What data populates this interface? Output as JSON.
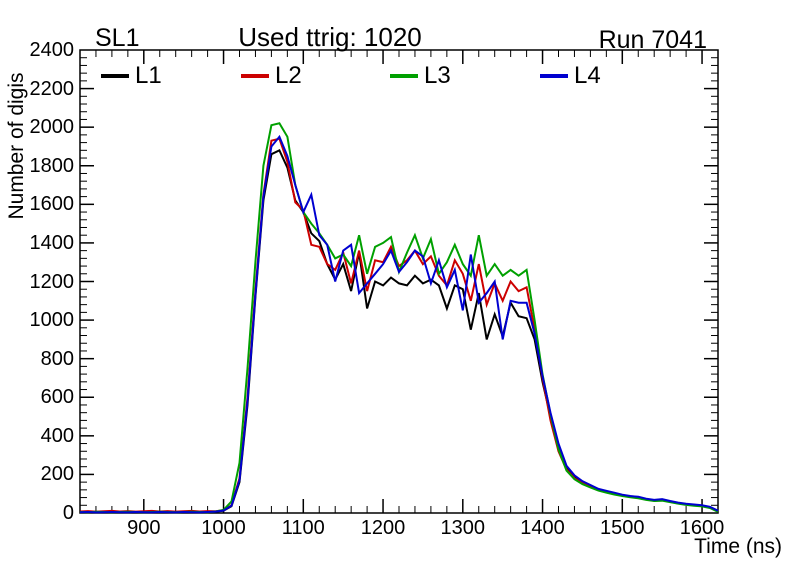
{
  "page": {
    "background": "#ffffff"
  },
  "header": {
    "left_label": "SL1",
    "center_label": "Used ttrig: 1020",
    "right_label": "Run 7041"
  },
  "legend": {
    "position": "top-inside",
    "entries": [
      {
        "label": "L1",
        "color": "#000000"
      },
      {
        "label": "L2",
        "color": "#cc0000"
      },
      {
        "label": "L3",
        "color": "#00a000"
      },
      {
        "label": "L4",
        "color": "#0000d0"
      }
    ]
  },
  "chart_data": {
    "type": "line",
    "title": "Used ttrig: 1020",
    "xlabel": "Time (ns)",
    "ylabel": "Number of digis",
    "xlim": [
      820,
      1620
    ],
    "ylim": [
      0,
      2400
    ],
    "grid": false,
    "legend_position": "top-inside",
    "x_major_ticks": [
      900,
      1000,
      1100,
      1200,
      1300,
      1400,
      1500,
      1600
    ],
    "x_minor_step": 20,
    "y_major_ticks": [
      0,
      200,
      400,
      600,
      800,
      1000,
      1200,
      1400,
      1600,
      1800,
      2000,
      2200,
      2400
    ],
    "y_minor_step": 40,
    "x": [
      820,
      830,
      840,
      850,
      860,
      870,
      880,
      890,
      900,
      910,
      920,
      930,
      940,
      950,
      960,
      970,
      980,
      990,
      1000,
      1010,
      1020,
      1030,
      1040,
      1050,
      1060,
      1070,
      1080,
      1090,
      1100,
      1110,
      1120,
      1130,
      1140,
      1150,
      1160,
      1170,
      1180,
      1190,
      1200,
      1210,
      1220,
      1230,
      1240,
      1250,
      1260,
      1270,
      1280,
      1290,
      1300,
      1310,
      1320,
      1330,
      1340,
      1350,
      1360,
      1370,
      1380,
      1390,
      1400,
      1410,
      1420,
      1430,
      1440,
      1450,
      1460,
      1470,
      1480,
      1490,
      1500,
      1510,
      1520,
      1530,
      1540,
      1550,
      1560,
      1570,
      1580,
      1590,
      1600,
      1610,
      1620
    ],
    "series": [
      {
        "name": "L1",
        "color": "#000000",
        "values": [
          4,
          3,
          5,
          4,
          3,
          4,
          5,
          4,
          3,
          4,
          5,
          4,
          3,
          4,
          5,
          4,
          3,
          6,
          12,
          35,
          160,
          560,
          1120,
          1620,
          1860,
          1880,
          1790,
          1620,
          1560,
          1450,
          1410,
          1290,
          1210,
          1290,
          1150,
          1350,
          1060,
          1200,
          1180,
          1220,
          1190,
          1180,
          1230,
          1190,
          1210,
          1180,
          1060,
          1180,
          1160,
          950,
          1140,
          900,
          1030,
          915,
          1090,
          1020,
          1010,
          900,
          680,
          500,
          340,
          235,
          185,
          160,
          140,
          120,
          112,
          100,
          92,
          86,
          82,
          72,
          66,
          70,
          60,
          52,
          46,
          42,
          38,
          30,
          10
        ]
      },
      {
        "name": "L2",
        "color": "#cc0000",
        "values": [
          8,
          10,
          7,
          9,
          11,
          8,
          10,
          7,
          9,
          11,
          8,
          10,
          7,
          9,
          11,
          8,
          10,
          9,
          14,
          40,
          180,
          600,
          1150,
          1650,
          1930,
          1940,
          1820,
          1610,
          1570,
          1390,
          1380,
          1290,
          1260,
          1350,
          1190,
          1360,
          1150,
          1310,
          1300,
          1380,
          1280,
          1310,
          1360,
          1290,
          1330,
          1230,
          1180,
          1310,
          1240,
          1100,
          1290,
          1080,
          1190,
          1100,
          1200,
          1150,
          1170,
          950,
          700,
          480,
          320,
          225,
          180,
          155,
          135,
          118,
          108,
          98,
          90,
          84,
          78,
          70,
          64,
          66,
          58,
          50,
          44,
          40,
          36,
          28,
          8
        ]
      },
      {
        "name": "L3",
        "color": "#00a000",
        "values": [
          5,
          4,
          6,
          5,
          4,
          5,
          6,
          5,
          4,
          5,
          6,
          5,
          4,
          5,
          6,
          5,
          4,
          8,
          16,
          60,
          260,
          750,
          1300,
          1800,
          2010,
          2020,
          1950,
          1700,
          1560,
          1500,
          1450,
          1390,
          1320,
          1340,
          1280,
          1440,
          1240,
          1380,
          1400,
          1430,
          1250,
          1350,
          1440,
          1320,
          1420,
          1240,
          1300,
          1390,
          1290,
          1230,
          1440,
          1230,
          1290,
          1230,
          1260,
          1230,
          1260,
          1000,
          720,
          510,
          330,
          220,
          175,
          150,
          132,
          116,
          106,
          96,
          88,
          82,
          76,
          68,
          62,
          64,
          56,
          48,
          42,
          38,
          34,
          26,
          6
        ]
      },
      {
        "name": "L4",
        "color": "#0000d0",
        "values": [
          4,
          5,
          3,
          4,
          5,
          4,
          3,
          5,
          4,
          3,
          5,
          4,
          3,
          5,
          4,
          3,
          5,
          7,
          13,
          38,
          170,
          580,
          1130,
          1640,
          1900,
          1950,
          1850,
          1700,
          1560,
          1650,
          1440,
          1390,
          1200,
          1360,
          1390,
          1140,
          1190,
          1240,
          1290,
          1360,
          1250,
          1300,
          1360,
          1330,
          1190,
          1310,
          1170,
          1260,
          1050,
          1340,
          1090,
          1140,
          1200,
          900,
          1100,
          1090,
          1090,
          930,
          710,
          520,
          360,
          245,
          195,
          165,
          145,
          125,
          115,
          105,
          95,
          88,
          84,
          74,
          68,
          72,
          62,
          54,
          48,
          44,
          40,
          32,
          12
        ]
      }
    ]
  }
}
